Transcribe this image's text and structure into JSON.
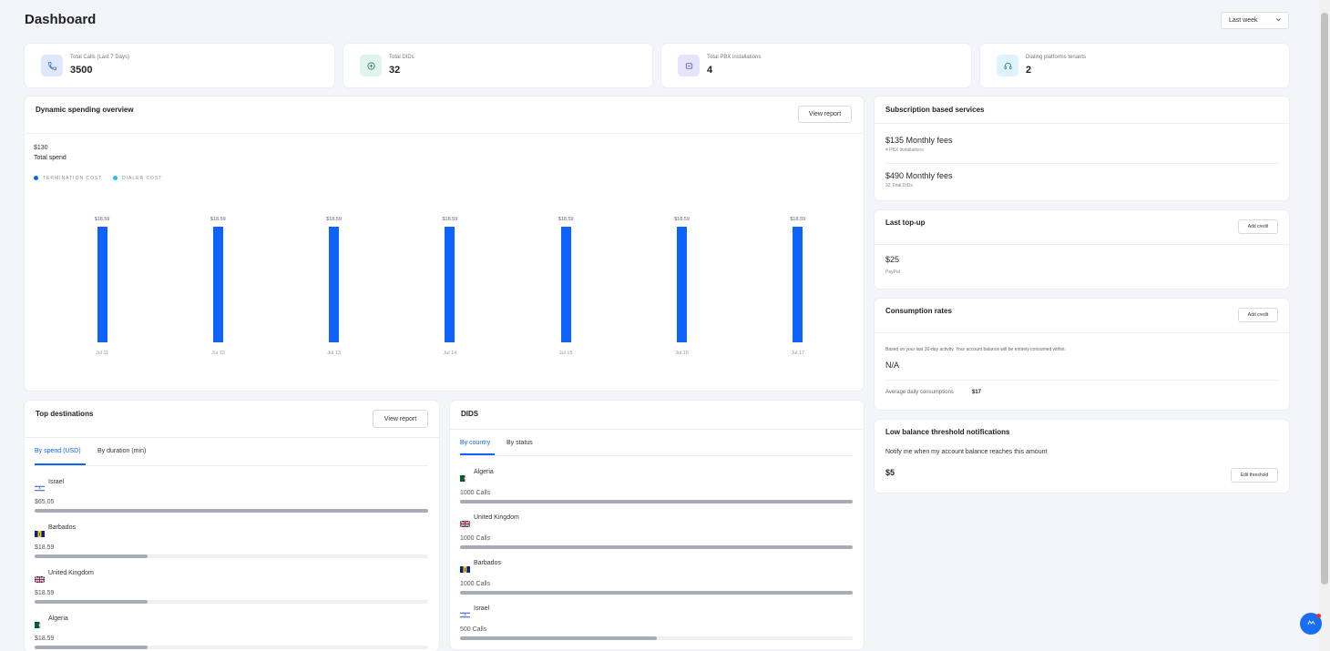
{
  "page": {
    "title": "Dashboard"
  },
  "period": {
    "selected": "Last week"
  },
  "stats": [
    {
      "label": "Total Calls (Last 7 Days)",
      "value": "3500",
      "icon": "phone-icon",
      "color": "#dde8ff"
    },
    {
      "label": "Total DIDs",
      "value": "32",
      "icon": "did-icon",
      "color": "#dff5ee"
    },
    {
      "label": "Total PBX installations",
      "value": "4",
      "icon": "pbx-icon",
      "color": "#e6e4fb"
    },
    {
      "label": "Dialing platforms tenants",
      "value": "2",
      "icon": "headset-icon",
      "color": "#def3fb"
    }
  ],
  "spending": {
    "title": "Dynamic spending overview",
    "view_report": "View report",
    "total_amount": "$130",
    "total_label": "Total spend",
    "legend": [
      {
        "name": "TERMINATION COST",
        "color": "#0e63fb"
      },
      {
        "name": "DIALER COST",
        "color": "#22c3e6"
      }
    ]
  },
  "chart_data": {
    "type": "bar",
    "categories": [
      "Jul 11",
      "Jul 12",
      "Jul 13",
      "Jul 14",
      "Jul 15",
      "Jul 16",
      "Jul 17"
    ],
    "series": [
      {
        "name": "TERMINATION COST",
        "values": [
          18.59,
          18.59,
          18.59,
          18.59,
          18.59,
          18.59,
          18.59
        ]
      }
    ],
    "data_labels": [
      "$18.59",
      "$18.59",
      "$18.59",
      "$18.59",
      "$18.59",
      "$18.59",
      "$18.59"
    ],
    "legend": "top-left",
    "grid": false
  },
  "subscription": {
    "title": "Subscription based services",
    "items": [
      {
        "amount": "$135 Monthly fees",
        "sub": "4 PBX installations"
      },
      {
        "amount": "$490 Monthly fees",
        "sub": "32 Total DIDs"
      }
    ]
  },
  "topup": {
    "title": "Last top-up",
    "button": "Add credit",
    "amount": "$25",
    "method": "PayPal"
  },
  "consumption": {
    "title": "Consumption rates",
    "button": "Add credit",
    "note": "Based on your last 30-day activity. Your account balance will be entirely consumed within:",
    "value": "N/A",
    "avg_label": "Average daily consumptions",
    "avg_value": "$17"
  },
  "lowbalance": {
    "title": "Low balance threshold notifications",
    "text": "Notify me when my account balance reaches this amount",
    "amount": "$5",
    "button": "Edit threshold"
  },
  "top_destinations": {
    "title": "Top destinations",
    "view_report": "View report",
    "tabs": [
      "By spend (USD)",
      "By duration (min)"
    ],
    "rows": [
      {
        "country": "Israel",
        "value": "$65.05",
        "fraction": 1.0,
        "flag": "israel"
      },
      {
        "country": "Barbados",
        "value": "$18.59",
        "fraction": 0.286,
        "flag": "barbados"
      },
      {
        "country": "United Kingdom",
        "value": "$18.59",
        "fraction": 0.286,
        "flag": "uk"
      },
      {
        "country": "Algeria",
        "value": "$18.59",
        "fraction": 0.286,
        "flag": "algeria"
      }
    ]
  },
  "dids": {
    "title": "DIDS",
    "tabs": [
      "By country",
      "By status"
    ],
    "rows": [
      {
        "country": "Algeria",
        "value": "1000 Calls",
        "fraction": 1.0,
        "flag": "algeria"
      },
      {
        "country": "United Kingdom",
        "value": "1000 Calls",
        "fraction": 1.0,
        "flag": "uk"
      },
      {
        "country": "Barbados",
        "value": "1000 Calls",
        "fraction": 1.0,
        "flag": "barbados"
      },
      {
        "country": "Israel",
        "value": "500 Calls",
        "fraction": 0.5,
        "flag": "israel"
      }
    ]
  }
}
